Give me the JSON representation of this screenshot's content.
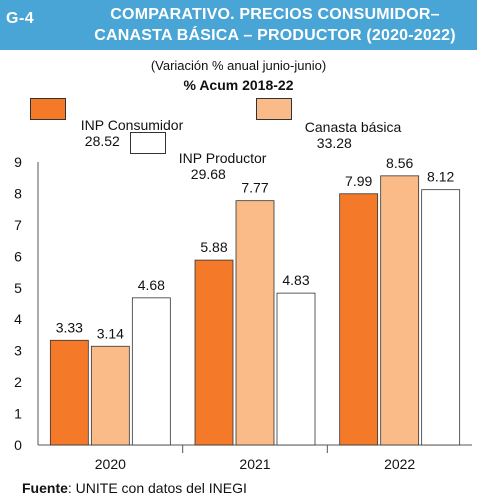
{
  "header": {
    "figure_label": "G-4",
    "title_line1": "COMPARATIVO. PRECIOS CONSUMIDOR–",
    "title_line2": "CANASTA BÁSICA – PRODUCTOR (2020-2022)"
  },
  "subtitle": "(Variación % anual junio-junio)",
  "legend": {
    "heading": "% Acum 2018-22",
    "items": [
      {
        "label": "INP Consumidor",
        "value": "28.52",
        "color": "#f47a2a"
      },
      {
        "label": "Canasta básica",
        "value": "33.28",
        "color": "#fbbb88"
      },
      {
        "label": "INP Productor",
        "value": "29.68",
        "color": "#ffffff"
      }
    ]
  },
  "chart_data": {
    "type": "bar",
    "categories": [
      "2020",
      "2021",
      "2022"
    ],
    "series": [
      {
        "name": "INP Consumidor",
        "values": [
          3.33,
          5.88,
          7.99
        ],
        "color": "#f47a2a"
      },
      {
        "name": "Canasta básica",
        "values": [
          3.14,
          7.77,
          8.56
        ],
        "color": "#fbbb88"
      },
      {
        "name": "INP Productor",
        "values": [
          4.68,
          4.83,
          8.12
        ],
        "color": "#ffffff"
      }
    ],
    "value_labels": [
      [
        "3.33",
        "5.88",
        "7.99"
      ],
      [
        "3.14",
        "7.77",
        "8.56"
      ],
      [
        "4.68",
        "4.83",
        "8.12"
      ]
    ],
    "ylim": [
      0,
      9
    ],
    "yticks": [
      0,
      1,
      2,
      3,
      4,
      5,
      6,
      7,
      8,
      9
    ],
    "grid": false
  },
  "source": {
    "label": "Fuente",
    "text": ": UNITE con datos del INEGI"
  }
}
